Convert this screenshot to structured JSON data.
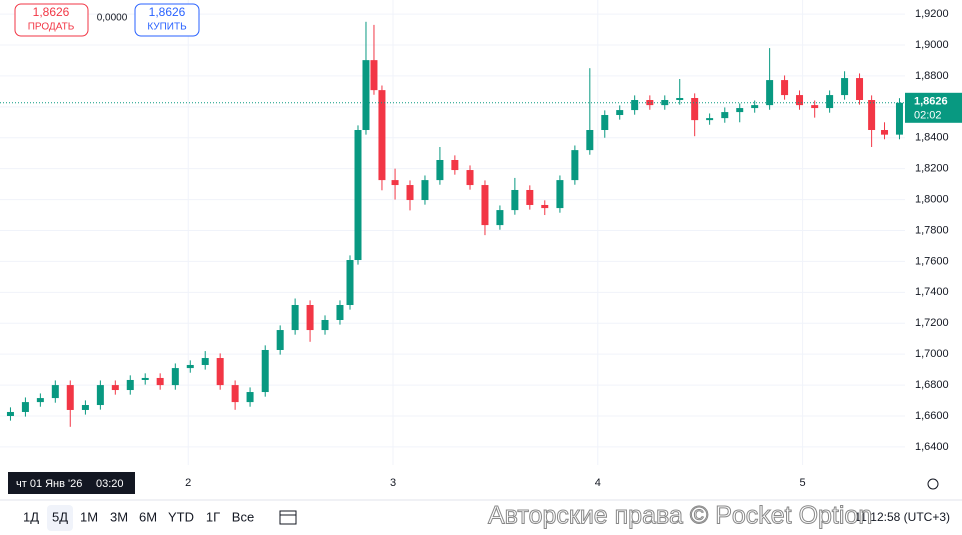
{
  "trade_panel": {
    "sell": {
      "price": "1,8626",
      "label": "ПРОДАТЬ"
    },
    "spread": "0,0000",
    "buy": {
      "price": "1,8626",
      "label": "КУПИТЬ"
    }
  },
  "chart_data": {
    "type": "candlestick",
    "x": [
      1.132,
      1.205,
      1.278,
      1.351,
      1.424,
      1.498,
      1.571,
      1.644,
      1.717,
      1.79,
      1.863,
      1.937,
      2.01,
      2.083,
      2.156,
      2.229,
      2.302,
      2.376,
      2.449,
      2.522,
      2.595,
      2.668,
      2.741,
      2.79,
      2.829,
      2.868,
      2.907,
      2.946,
      3.01,
      3.083,
      3.156,
      3.229,
      3.302,
      3.376,
      3.449,
      3.522,
      3.595,
      3.668,
      3.741,
      3.815,
      3.888,
      3.961,
      4.034,
      4.107,
      4.18,
      4.254,
      4.327,
      4.4,
      4.473,
      4.546,
      4.62,
      4.693,
      4.766,
      4.839,
      4.912,
      4.985,
      5.059,
      5.132,
      5.205,
      5.278,
      5.337,
      5.4,
      5.473
    ],
    "open": [
      1.66,
      1.6626,
      1.669,
      1.6716,
      1.68,
      1.6639,
      1.6671,
      1.68,
      1.6768,
      1.6833,
      1.6846,
      1.68,
      1.691,
      1.693,
      1.6975,
      1.68,
      1.669,
      1.6755,
      1.7027,
      1.7156,
      1.7318,
      1.7156,
      1.7221,
      1.7318,
      1.7609,
      1.845,
      1.8902,
      1.8708,
      1.8126,
      1.8094,
      1.7997,
      1.8126,
      1.8256,
      1.8191,
      1.8094,
      1.7835,
      1.7932,
      1.8062,
      1.7965,
      1.7945,
      1.8126,
      1.832,
      1.845,
      1.8547,
      1.8579,
      1.8644,
      1.8611,
      1.8644,
      1.8657,
      1.8514,
      1.8527,
      1.8566,
      1.8592,
      1.8611,
      1.8773,
      1.8676,
      1.8611,
      1.8592,
      1.8676,
      1.8786,
      1.8644,
      1.845,
      1.842
    ],
    "high": [
      1.6656,
      1.672,
      1.6746,
      1.683,
      1.683,
      1.6701,
      1.683,
      1.683,
      1.6863,
      1.6876,
      1.6876,
      1.694,
      1.696,
      1.702,
      1.7005,
      1.683,
      1.6785,
      1.7057,
      1.7186,
      1.736,
      1.7348,
      1.7251,
      1.7348,
      1.7639,
      1.848,
      1.915,
      1.913,
      1.8738,
      1.82,
      1.8124,
      1.8156,
      1.834,
      1.8286,
      1.8221,
      1.8124,
      1.7962,
      1.814,
      1.8092,
      1.7995,
      1.8156,
      1.835,
      1.885,
      1.8577,
      1.8609,
      1.8674,
      1.8674,
      1.8674,
      1.878,
      1.8687,
      1.8557,
      1.8596,
      1.8622,
      1.8641,
      1.898,
      1.8803,
      1.8706,
      1.8641,
      1.8706,
      1.883,
      1.8816,
      1.8674,
      1.85,
      1.8656
    ],
    "low": [
      1.657,
      1.6596,
      1.666,
      1.6686,
      1.653,
      1.6609,
      1.6641,
      1.6738,
      1.6738,
      1.6803,
      1.677,
      1.677,
      1.688,
      1.69,
      1.677,
      1.664,
      1.666,
      1.6725,
      1.6997,
      1.7126,
      1.708,
      1.7126,
      1.7191,
      1.7288,
      1.7579,
      1.842,
      1.8678,
      1.806,
      1.8,
      1.793,
      1.7967,
      1.8096,
      1.8161,
      1.8064,
      1.777,
      1.7805,
      1.7902,
      1.7935,
      1.79,
      1.7915,
      1.8096,
      1.829,
      1.84,
      1.8517,
      1.8549,
      1.8581,
      1.8581,
      1.8614,
      1.841,
      1.8484,
      1.8497,
      1.85,
      1.8562,
      1.8581,
      1.8646,
      1.8581,
      1.853,
      1.8562,
      1.8646,
      1.8614,
      1.834,
      1.839,
      1.839
    ],
    "close": [
      1.6626,
      1.669,
      1.6716,
      1.68,
      1.6639,
      1.6671,
      1.68,
      1.6768,
      1.6833,
      1.6846,
      1.68,
      1.691,
      1.693,
      1.6975,
      1.68,
      1.669,
      1.6755,
      1.7027,
      1.7156,
      1.7318,
      1.7156,
      1.7221,
      1.7318,
      1.7609,
      1.845,
      1.8902,
      1.8708,
      1.8126,
      1.8094,
      1.7997,
      1.8126,
      1.8256,
      1.8191,
      1.8094,
      1.7835,
      1.7932,
      1.8062,
      1.7965,
      1.7945,
      1.8126,
      1.832,
      1.845,
      1.8547,
      1.8579,
      1.8644,
      1.8611,
      1.8644,
      1.8657,
      1.8514,
      1.8527,
      1.8566,
      1.8592,
      1.8611,
      1.8773,
      1.8676,
      1.8611,
      1.8592,
      1.8676,
      1.8786,
      1.8644,
      1.845,
      1.842,
      1.8626
    ],
    "up_color": "#089981",
    "down_color": "#f23645",
    "grid": true,
    "xlim": [
      1.12,
      5.5
    ],
    "ylim": [
      1.6283,
      1.9291
    ],
    "xticks": [
      2,
      3,
      4,
      5
    ],
    "yticks": [
      {
        "value": 1.64,
        "label": "1,6400"
      },
      {
        "value": 1.66,
        "label": "1,6600"
      },
      {
        "value": 1.68,
        "label": "1,6800"
      },
      {
        "value": 1.7,
        "label": "1,7000"
      },
      {
        "value": 1.72,
        "label": "1,7200"
      },
      {
        "value": 1.74,
        "label": "1,7400"
      },
      {
        "value": 1.76,
        "label": "1,7600"
      },
      {
        "value": 1.78,
        "label": "1,7800"
      },
      {
        "value": 1.8,
        "label": "1,8000"
      },
      {
        "value": 1.82,
        "label": "1,8200"
      },
      {
        "value": 1.84,
        "label": "1,8400"
      },
      {
        "value": 1.86,
        "label": "1,8600"
      },
      {
        "value": 1.88,
        "label": "1,8800"
      },
      {
        "value": 1.9,
        "label": "1,9000"
      },
      {
        "value": 1.92,
        "label": "1,9200"
      }
    ],
    "current_price": {
      "value": 1.8626,
      "label": "1,8626",
      "countdown": "02:02"
    },
    "crosshair": {
      "date": "чт 01 Янв '26",
      "time": "03:20"
    }
  },
  "toolbar": {
    "ranges": [
      "1Д",
      "5Д",
      "1М",
      "3М",
      "6М",
      "YTD",
      "1Г",
      "Все"
    ],
    "active": "5Д",
    "clock": "11:12:58 (UTC+3)"
  },
  "watermark": "Авторские права © Pocket Option"
}
